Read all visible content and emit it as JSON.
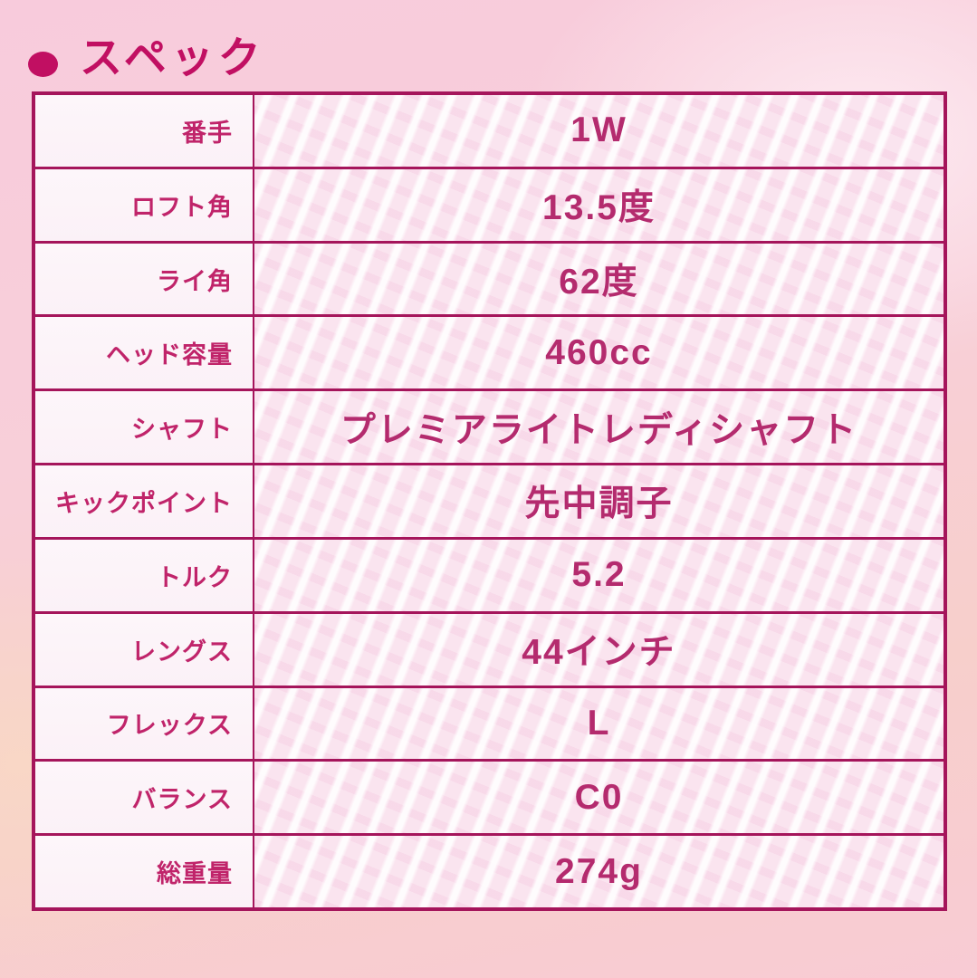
{
  "page": {
    "title": "スペック",
    "accent_color": "#c10f62",
    "border_color": "#a5155b",
    "label_text_color": "#c0246a",
    "value_text_color": "#b42b6e",
    "label_cell_bg": "#fdf6fa",
    "value_cell_bg": "#fae4ef"
  },
  "table": {
    "rows": [
      {
        "label": "番手",
        "value": "1W"
      },
      {
        "label": "ロフト角",
        "value": "13.5度"
      },
      {
        "label": "ライ角",
        "value": "62度"
      },
      {
        "label": "ヘッド容量",
        "value": "460cc"
      },
      {
        "label": "シャフト",
        "value": "プレミアライトレディシャフト"
      },
      {
        "label": "キックポイント",
        "value": "先中調子"
      },
      {
        "label": "トルク",
        "value": "5.2"
      },
      {
        "label": "レングス",
        "value": "44インチ"
      },
      {
        "label": "フレックス",
        "value": "L"
      },
      {
        "label": "バランス",
        "value": "C0"
      },
      {
        "label": "総重量",
        "value": "274g"
      }
    ]
  }
}
